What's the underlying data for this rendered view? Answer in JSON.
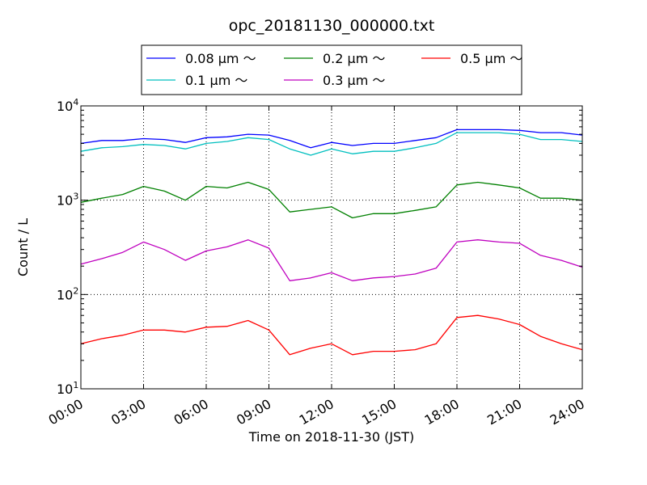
{
  "chart_data": {
    "type": "line",
    "title": "opc_20181130_000000.txt",
    "xlabel": "Time on 2018-11-30 (JST)",
    "ylabel": "Count / L",
    "yscale": "log",
    "ylim": [
      10,
      10000
    ],
    "xlim": [
      "00:00",
      "24:00"
    ],
    "x_ticks": [
      "00:00",
      "03:00",
      "06:00",
      "09:00",
      "12:00",
      "15:00",
      "18:00",
      "21:00",
      "24:00"
    ],
    "y_ticks": [
      {
        "base": "10",
        "exp": "1"
      },
      {
        "base": "10",
        "exp": "2"
      },
      {
        "base": "10",
        "exp": "3"
      },
      {
        "base": "10",
        "exp": "4"
      }
    ],
    "grid": true,
    "legend_position": "top-center",
    "x": [
      "00:00",
      "01:00",
      "02:00",
      "03:00",
      "04:00",
      "05:00",
      "06:00",
      "07:00",
      "08:00",
      "09:00",
      "10:00",
      "11:00",
      "12:00",
      "13:00",
      "14:00",
      "15:00",
      "16:00",
      "17:00",
      "18:00",
      "19:00",
      "20:00",
      "21:00",
      "22:00",
      "23:00",
      "24:00"
    ],
    "series": [
      {
        "name": "0.08 μm ～",
        "color": "#0000ff",
        "values": [
          4000,
          4300,
          4300,
          4500,
          4400,
          4100,
          4600,
          4700,
          5000,
          4900,
          4300,
          3600,
          4100,
          3800,
          4000,
          4000,
          4300,
          4600,
          5600,
          5600,
          5600,
          5500,
          5200,
          5200,
          4900
        ]
      },
      {
        "name": "0.1 μm ～",
        "color": "#00bfbf",
        "values": [
          3300,
          3600,
          3700,
          3900,
          3800,
          3500,
          4000,
          4200,
          4600,
          4400,
          3500,
          3000,
          3500,
          3100,
          3300,
          3300,
          3600,
          4000,
          5200,
          5200,
          5200,
          5000,
          4400,
          4400,
          4200
        ]
      },
      {
        "name": "0.2 μm ～",
        "color": "#008000",
        "values": [
          950,
          1050,
          1150,
          1400,
          1250,
          1000,
          1400,
          1350,
          1550,
          1300,
          750,
          800,
          850,
          650,
          720,
          720,
          780,
          850,
          1450,
          1550,
          1450,
          1350,
          1050,
          1050,
          1000
        ]
      },
      {
        "name": "0.3 μm ～",
        "color": "#bf00bf",
        "values": [
          210,
          240,
          280,
          360,
          300,
          230,
          290,
          320,
          380,
          310,
          140,
          150,
          170,
          140,
          150,
          155,
          165,
          190,
          360,
          380,
          360,
          350,
          260,
          230,
          195
        ]
      },
      {
        "name": "0.5 μm ～",
        "color": "#ff0000",
        "values": [
          30,
          34,
          37,
          42,
          42,
          40,
          45,
          46,
          53,
          42,
          23,
          27,
          30,
          23,
          25,
          25,
          26,
          30,
          57,
          60,
          55,
          48,
          36,
          30,
          26
        ]
      }
    ]
  }
}
